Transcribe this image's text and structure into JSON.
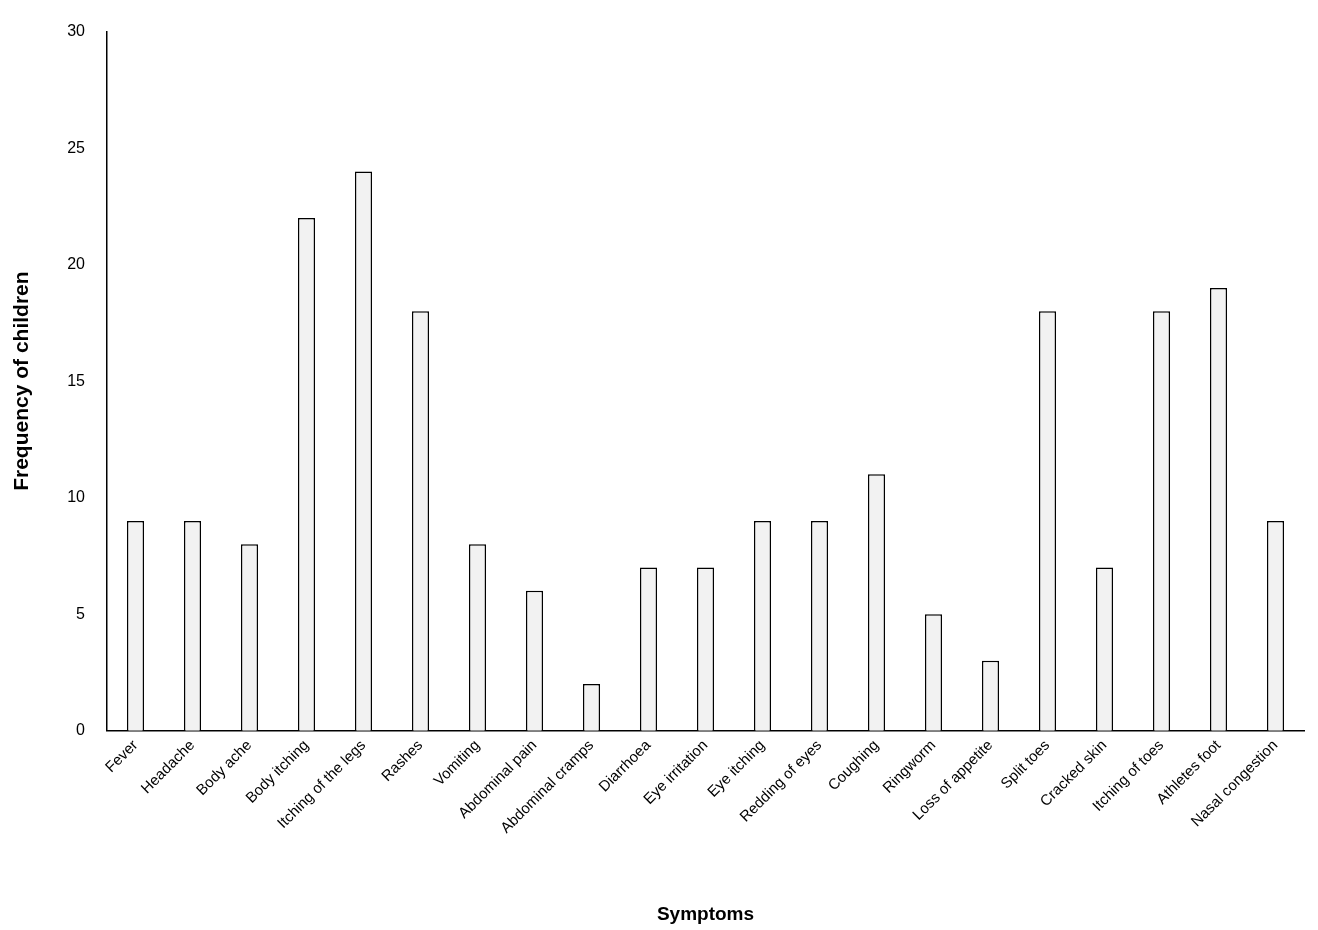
{
  "chart_data": {
    "type": "bar",
    "xlabel": "Symptoms",
    "ylabel": "Frequency of children",
    "categories": [
      "Fever",
      "Headache",
      "Body ache",
      "Body itching",
      "Itching of the legs",
      "Rashes",
      "Vomiting",
      "Abdominal pain",
      "Abdominal cramps",
      "Diarrhoea",
      "Eye irritation",
      "Eye itching",
      "Redding of eyes",
      "Coughing",
      "Ringworm",
      "Loss of appetite",
      "Split toes",
      "Cracked skin",
      "Itching of toes",
      "Athletes foot",
      "Nasal congestion"
    ],
    "values": [
      9,
      9,
      8,
      22,
      24,
      18,
      8,
      6,
      2,
      7,
      7,
      9,
      9,
      11,
      5,
      3,
      18,
      7,
      18,
      19,
      9
    ],
    "color": "#f2f2f2",
    "ylim": [
      0,
      30
    ],
    "yticks": [
      0,
      5,
      10,
      15,
      20,
      25,
      30
    ],
    "grid": false,
    "legend": false
  }
}
